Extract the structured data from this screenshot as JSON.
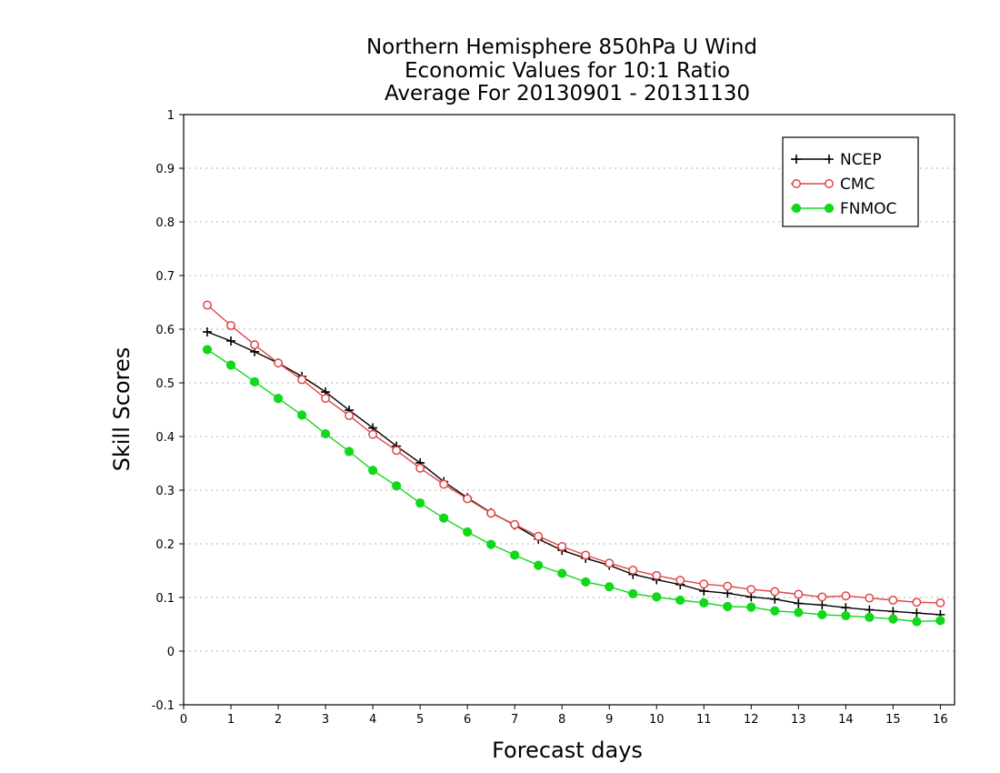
{
  "chart_data": {
    "type": "line",
    "title": [
      "Northern Hemisphere 850hPa U Wind",
      "Economic Values for 10:1 Ratio",
      "Average For 20130901 - 20131130"
    ],
    "xlabel": "Forecast days",
    "ylabel": "Skill Scores",
    "xlim": [
      0,
      16.3
    ],
    "ylim": [
      -0.1,
      1.0
    ],
    "xticks": [
      "0",
      "1",
      "2",
      "3",
      "4",
      "5",
      "6",
      "7",
      "8",
      "9",
      "10",
      "11",
      "12",
      "13",
      "14",
      "15",
      "16"
    ],
    "yticks": [
      "-0.1",
      "0",
      "0.1",
      "0.2",
      "0.3",
      "0.4",
      "0.5",
      "0.6",
      "0.7",
      "0.8",
      "0.9",
      "1"
    ],
    "grid": "horizontal dotted",
    "legend_position": "top-right",
    "x": [
      0.5,
      1,
      1.5,
      2,
      2.5,
      3,
      3.5,
      4,
      4.5,
      5,
      5.5,
      6,
      6.5,
      7,
      7.5,
      8,
      8.5,
      9,
      9.5,
      10,
      10.5,
      11,
      11.5,
      12,
      12.5,
      13,
      13.5,
      14,
      14.5,
      15,
      15.5,
      16
    ],
    "series": [
      {
        "name": "NCEP",
        "color": "#000000",
        "marker": "plus",
        "values": [
          0.595,
          0.578,
          0.558,
          0.537,
          0.512,
          0.483,
          0.449,
          0.416,
          0.382,
          0.351,
          0.316,
          0.286,
          0.258,
          0.235,
          0.209,
          0.188,
          0.173,
          0.16,
          0.143,
          0.133,
          0.124,
          0.112,
          0.108,
          0.101,
          0.097,
          0.089,
          0.086,
          0.081,
          0.077,
          0.074,
          0.071,
          0.068
        ]
      },
      {
        "name": "CMC",
        "color": "#e04545",
        "marker": "open-circle",
        "values": [
          0.645,
          0.607,
          0.571,
          0.537,
          0.506,
          0.471,
          0.439,
          0.404,
          0.374,
          0.341,
          0.311,
          0.284,
          0.257,
          0.236,
          0.214,
          0.195,
          0.179,
          0.164,
          0.151,
          0.141,
          0.132,
          0.125,
          0.121,
          0.115,
          0.111,
          0.106,
          0.101,
          0.103,
          0.099,
          0.095,
          0.091,
          0.09
        ]
      },
      {
        "name": "FNMOC",
        "color": "#11d81a",
        "marker": "filled-circle",
        "values": [
          0.562,
          0.533,
          0.502,
          0.471,
          0.44,
          0.405,
          0.372,
          0.337,
          0.308,
          0.276,
          0.248,
          0.222,
          0.199,
          0.179,
          0.16,
          0.145,
          0.129,
          0.12,
          0.107,
          0.101,
          0.095,
          0.09,
          0.083,
          0.082,
          0.075,
          0.072,
          0.068,
          0.066,
          0.063,
          0.06,
          0.055,
          0.057
        ]
      }
    ]
  }
}
